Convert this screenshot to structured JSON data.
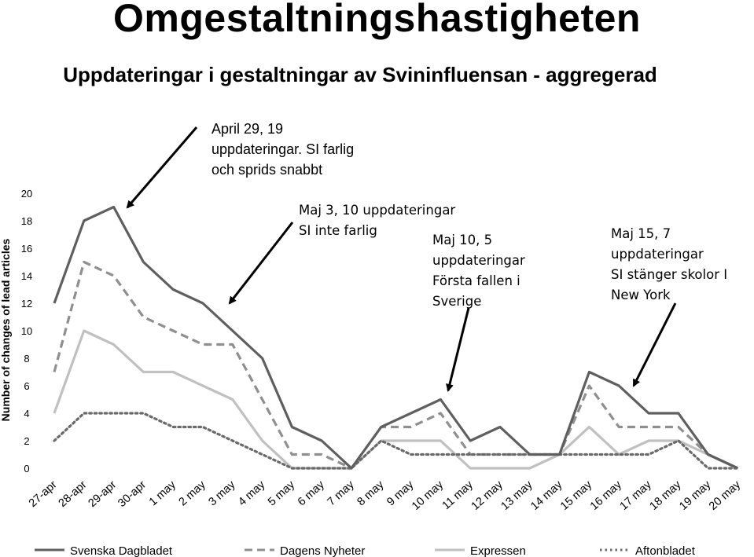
{
  "title": "Omgestaltningshastigheten",
  "subtitle": "Uppdateringar i gestaltningar av Svininfluensan - aggregerad",
  "chart_data": {
    "type": "line",
    "ylabel": "Number of changes of lead articles",
    "xlabel": "",
    "ylim": [
      0,
      20
    ],
    "yticks": [
      0,
      2,
      4,
      6,
      8,
      10,
      12,
      14,
      16,
      18,
      20
    ],
    "grid": false,
    "legend_position": "bottom",
    "categories": [
      "27-apr",
      "28-apr",
      "29-apr",
      "30-apr",
      "1 may",
      "2 may",
      "3 may",
      "4 may",
      "5 may",
      "6 may",
      "7 may",
      "8 may",
      "9 may",
      "10 may",
      "11 may",
      "12 may",
      "13 may",
      "14 may",
      "15 may",
      "16 may",
      "17 may",
      "18 may",
      "19 may",
      "20 may"
    ],
    "series": [
      {
        "name": "Svenska Dagbladet",
        "color": "#5f5f5f",
        "style": "solid",
        "values": [
          12,
          18,
          19,
          15,
          13,
          12,
          10,
          8,
          3,
          2,
          0,
          3,
          4,
          5,
          2,
          3,
          1,
          1,
          7,
          6,
          4,
          4,
          1,
          0
        ]
      },
      {
        "name": "Dagens Nyheter",
        "color": "#8f8f8f",
        "style": "dashed",
        "values": [
          7,
          15,
          14,
          11,
          10,
          9,
          9,
          5,
          1,
          1,
          0,
          3,
          3,
          4,
          1,
          1,
          1,
          1,
          6,
          3,
          3,
          3,
          1,
          0
        ]
      },
      {
        "name": "Expressen",
        "color": "#c0c0c0",
        "style": "solid",
        "values": [
          4,
          10,
          9,
          7,
          7,
          6,
          5,
          2,
          0,
          0,
          0,
          2,
          2,
          2,
          0,
          0,
          0,
          1,
          3,
          1,
          2,
          2,
          1,
          0
        ]
      },
      {
        "name": "Aftonbladet",
        "color": "#6a6a6a",
        "style": "dotted",
        "values": [
          2,
          4,
          4,
          4,
          3,
          3,
          2,
          1,
          0,
          0,
          0,
          2,
          1,
          1,
          1,
          1,
          1,
          1,
          1,
          1,
          1,
          2,
          0,
          0
        ]
      }
    ],
    "annotations": [
      {
        "lines": [
          "April 29, 19",
          "uppdateringar. SI farlig",
          "och sprids snabbt"
        ],
        "points_to": "29-apr"
      },
      {
        "lines": [
          "Maj 3, 10 uppdateringar",
          "SI inte farlig"
        ],
        "points_to": "3 may"
      },
      {
        "lines": [
          "Maj 10, 5",
          "uppdateringar",
          "Första fallen i",
          "Sverige"
        ],
        "points_to": "10 may"
      },
      {
        "lines": [
          "Maj 15, 7",
          "uppdateringar",
          "SI stänger skolor I",
          "New York"
        ],
        "points_to": "16 may"
      }
    ]
  }
}
